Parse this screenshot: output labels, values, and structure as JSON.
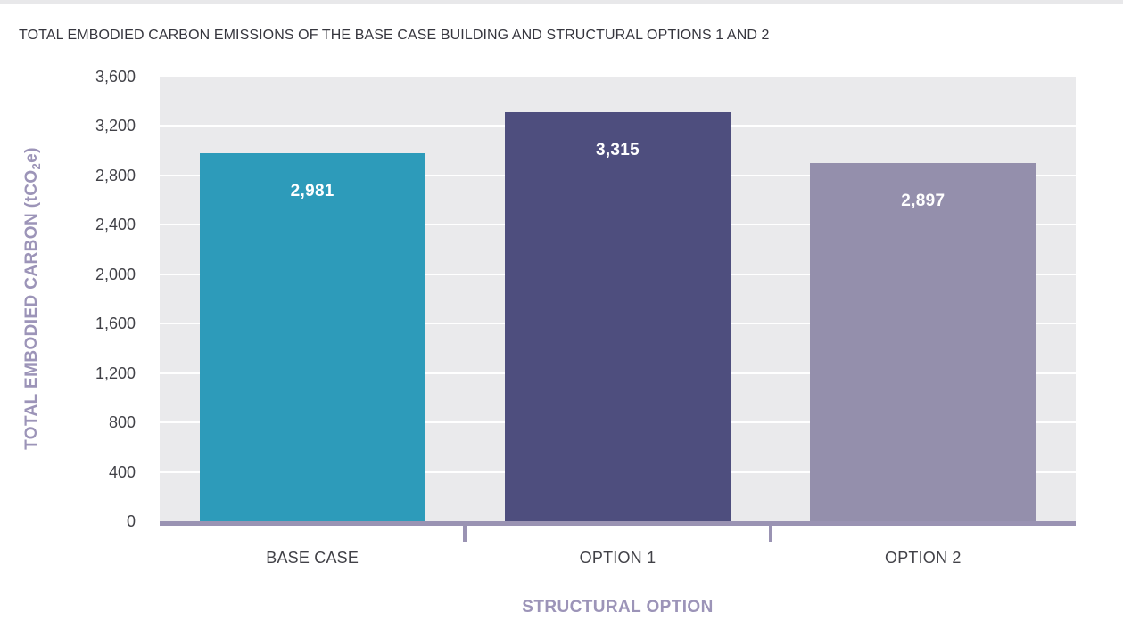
{
  "chart_data": {
    "type": "bar",
    "title": "TOTAL EMBODIED CARBON EMISSIONS OF THE BASE CASE BUILDING AND STRUCTURAL OPTIONS 1 AND 2",
    "categories": [
      "BASE CASE",
      "OPTION 1",
      "OPTION 2"
    ],
    "values": [
      2981,
      3315,
      2897
    ],
    "value_labels": [
      "2,981",
      "3,315",
      "2,897"
    ],
    "bar_colors": [
      "#2d9bba",
      "#4e4e7e",
      "#948fac"
    ],
    "xlabel": "STRUCTURAL OPTION",
    "ylabel": {
      "pre": "TOTAL EMBODIED CARBON (tCO",
      "sub": "2",
      "post": "e)"
    },
    "ylim": [
      0,
      3600
    ],
    "ytick_step": 400,
    "ytick_labels": [
      "0",
      "400",
      "800",
      "1,200",
      "1,600",
      "2,000",
      "2,400",
      "2,800",
      "3,200",
      "3,600"
    ],
    "grid": "horizontal-white",
    "legend": "none",
    "colors": {
      "plot_background": "#eaeaec",
      "gridline": "#ffffff",
      "axis_line": "#9a93b3",
      "axis_title_text": "#9c94b8",
      "tick_label_text": "#414147",
      "title_text": "#36363e",
      "bar_value_text": "#ffffff",
      "page_background": "#ffffff",
      "top_strip": "#e8e8ea"
    }
  }
}
